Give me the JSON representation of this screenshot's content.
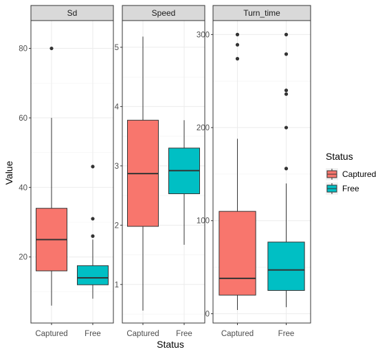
{
  "chart_data": {
    "type": "boxplot",
    "xlabel": "Status",
    "ylabel": "Value",
    "categories": [
      "Captured",
      "Free"
    ],
    "legend": {
      "title": "Status",
      "placement": "right",
      "entries": [
        {
          "label": "Captured",
          "color": "#F8766D"
        },
        {
          "label": "Free",
          "color": "#00BFC4"
        }
      ]
    },
    "grid": true,
    "panels": [
      {
        "title": "Sd",
        "ylim": [
          1.0,
          88.0
        ],
        "yticks": [
          20,
          40,
          60,
          80
        ],
        "groups": [
          {
            "category": "Captured",
            "whisker_low": 6,
            "q1": 16,
            "median": 25,
            "q3": 34,
            "whisker_high": 60,
            "outliers": [
              80
            ]
          },
          {
            "category": "Free",
            "whisker_low": 8,
            "q1": 12,
            "median": 14,
            "q3": 17.5,
            "whisker_high": 25,
            "outliers": [
              26,
              31,
              46
            ]
          }
        ]
      },
      {
        "title": "Speed",
        "ylim": [
          0.35,
          5.45
        ],
        "yticks": [
          1,
          2,
          3,
          4,
          5
        ],
        "groups": [
          {
            "category": "Captured",
            "whisker_low": 0.56,
            "q1": 1.98,
            "median": 2.87,
            "q3": 3.77,
            "whisker_high": 5.18,
            "outliers": []
          },
          {
            "category": "Free",
            "whisker_low": 1.67,
            "q1": 2.53,
            "median": 2.92,
            "q3": 3.3,
            "whisker_high": 3.77,
            "outliers": []
          }
        ]
      },
      {
        "title": "Turn_time",
        "ylim": [
          -10,
          315
        ],
        "yticks": [
          0,
          100,
          200,
          300
        ],
        "groups": [
          {
            "category": "Captured",
            "whisker_low": 4,
            "q1": 20,
            "median": 38,
            "q3": 110,
            "whisker_high": 188,
            "outliers": [
              274,
              289,
              300
            ]
          },
          {
            "category": "Free",
            "whisker_low": 7,
            "q1": 25,
            "median": 47,
            "q3": 77,
            "whisker_high": 140,
            "outliers": [
              156,
              200,
              236,
              240,
              279,
              300
            ]
          }
        ]
      }
    ]
  }
}
